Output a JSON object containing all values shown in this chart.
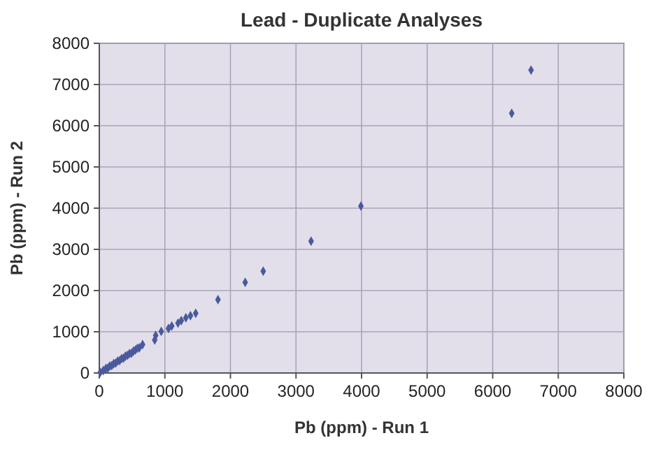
{
  "chart_data": {
    "type": "scatter",
    "title": "Lead - Duplicate Analyses",
    "xlabel": "Pb (ppm) - Run 1",
    "ylabel": "Pb (ppm) - Run 2",
    "x": [
      6585,
      6290,
      3990,
      3230,
      2500,
      2225,
      1810,
      1470,
      1390,
      1320,
      1250,
      1200,
      1105,
      1055,
      945,
      860,
      845,
      660,
      610,
      580,
      550,
      520,
      490,
      460,
      430,
      400,
      370,
      340,
      310,
      280,
      250,
      220,
      190,
      160,
      130,
      100,
      60,
      15
    ],
    "values": [
      7350,
      6300,
      4050,
      3200,
      2470,
      2200,
      1780,
      1450,
      1390,
      1340,
      1270,
      1210,
      1140,
      1080,
      1010,
      910,
      800,
      690,
      610,
      600,
      560,
      530,
      480,
      470,
      430,
      410,
      360,
      350,
      300,
      290,
      240,
      230,
      180,
      170,
      120,
      110,
      60,
      15
    ],
    "color": "#4a5a9e",
    "marker": "diamond",
    "xlim": [
      0,
      8000
    ],
    "ylim": [
      0,
      8000
    ],
    "xticks": [
      0,
      1000,
      2000,
      3000,
      4000,
      5000,
      6000,
      7000,
      8000
    ],
    "yticks": [
      0,
      1000,
      2000,
      3000,
      4000,
      5000,
      6000,
      7000,
      8000
    ],
    "grid": true
  }
}
